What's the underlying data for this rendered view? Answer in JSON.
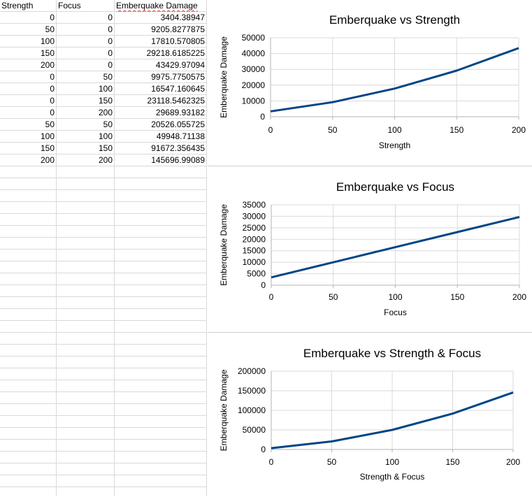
{
  "sheet": {
    "headers": [
      "Strength",
      "Focus",
      "Emberquake Damage"
    ],
    "rows": [
      [
        "0",
        "0",
        "3404.38947"
      ],
      [
        "50",
        "0",
        "9205.8277875"
      ],
      [
        "100",
        "0",
        "17810.570805"
      ],
      [
        "150",
        "0",
        "29218.6185225"
      ],
      [
        "200",
        "0",
        "43429.97094"
      ],
      [
        "0",
        "50",
        "9975.7750575"
      ],
      [
        "0",
        "100",
        "16547.160645"
      ],
      [
        "0",
        "150",
        "23118.5462325"
      ],
      [
        "0",
        "200",
        "29689.93182"
      ],
      [
        "50",
        "50",
        "20526.055725"
      ],
      [
        "100",
        "100",
        "49948.71138"
      ],
      [
        "150",
        "150",
        "91672.356435"
      ],
      [
        "200",
        "200",
        "145696.99089"
      ]
    ]
  },
  "chart_data": [
    {
      "type": "line",
      "title": "Emberquake vs Strength",
      "xlabel": "Strength",
      "ylabel": "Emberquake Damage",
      "x": [
        0,
        50,
        100,
        150,
        200
      ],
      "series": [
        {
          "values": [
            3404.38947,
            9205.8277875,
            17810.570805,
            29218.6185225,
            43429.97094
          ]
        }
      ],
      "xlim": [
        0,
        200
      ],
      "ylim": [
        0,
        50000
      ],
      "xticks": [
        "0",
        "50",
        "100",
        "150",
        "200"
      ],
      "yticks": [
        "0",
        "10000",
        "20000",
        "30000",
        "40000",
        "50000"
      ],
      "grid": true,
      "series_color": "#004586"
    },
    {
      "type": "line",
      "title": "Emberquake vs Focus",
      "xlabel": "Focus",
      "ylabel": "Emberquake Damage",
      "x": [
        0,
        50,
        100,
        150,
        200
      ],
      "series": [
        {
          "values": [
            3404.38947,
            9975.7750575,
            16547.160645,
            23118.5462325,
            29689.93182
          ]
        }
      ],
      "xlim": [
        0,
        200
      ],
      "ylim": [
        0,
        35000
      ],
      "xticks": [
        "0",
        "50",
        "100",
        "150",
        "200"
      ],
      "yticks": [
        "0",
        "5000",
        "10000",
        "15000",
        "20000",
        "25000",
        "30000",
        "35000"
      ],
      "grid": true,
      "series_color": "#004586"
    },
    {
      "type": "line",
      "title": "Emberquake vs Strength & Focus",
      "xlabel": "Strength & Focus",
      "ylabel": "Emberquake Damage",
      "x": [
        0,
        50,
        100,
        150,
        200
      ],
      "series": [
        {
          "values": [
            3404.38947,
            20526.055725,
            49948.71138,
            91672.356435,
            145696.99089
          ]
        }
      ],
      "xlim": [
        0,
        200
      ],
      "ylim": [
        0,
        200000
      ],
      "xticks": [
        "0",
        "50",
        "100",
        "150",
        "200"
      ],
      "yticks": [
        "0",
        "50000",
        "100000",
        "150000",
        "200000"
      ],
      "grid": true,
      "series_color": "#004586"
    }
  ]
}
